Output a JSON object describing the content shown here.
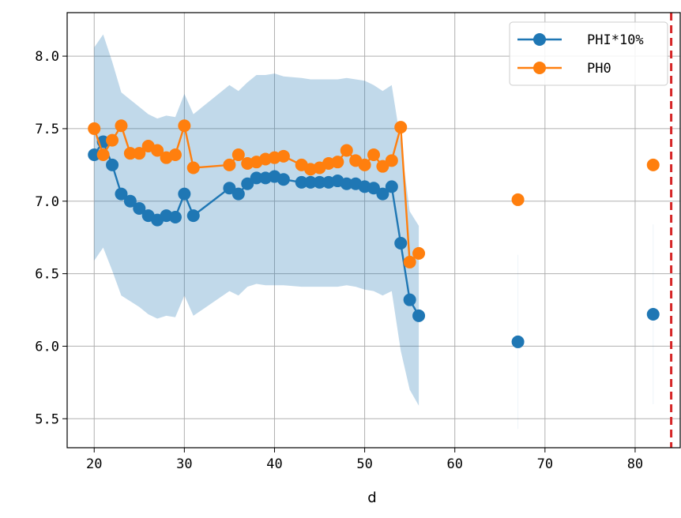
{
  "chart_data": {
    "type": "line",
    "title": "",
    "xlabel": "d",
    "ylabel": "",
    "xlim": [
      17,
      85
    ],
    "ylim": [
      5.3,
      8.3
    ],
    "xticks": [
      20,
      30,
      40,
      50,
      60,
      70,
      80
    ],
    "yticks": [
      5.5,
      6.0,
      6.5,
      7.0,
      7.5,
      8.0
    ],
    "ytick_labels": [
      "5.5",
      "6.0",
      "6.5",
      "7.0",
      "7.5",
      "8.0"
    ],
    "grid": true,
    "legend_position": "top-right",
    "vline": {
      "x": 84,
      "color": "#d62728",
      "style": "dashed"
    },
    "band": {
      "color": "#1f77b4",
      "opacity": 0.28,
      "x": [
        20,
        21,
        22,
        23,
        24,
        25,
        26,
        27,
        28,
        29,
        30,
        31,
        35,
        36,
        37,
        38,
        39,
        40,
        41,
        43,
        44,
        45,
        46,
        47,
        48,
        49,
        50,
        51,
        52,
        53,
        54,
        55,
        56
      ],
      "upper": [
        8.06,
        8.15,
        7.96,
        7.75,
        7.7,
        7.65,
        7.6,
        7.57,
        7.59,
        7.58,
        7.74,
        7.6,
        7.8,
        7.76,
        7.82,
        7.87,
        7.87,
        7.88,
        7.86,
        7.85,
        7.84,
        7.84,
        7.84,
        7.84,
        7.85,
        7.84,
        7.83,
        7.8,
        7.76,
        7.8,
        7.41,
        6.93,
        6.83
      ],
      "lower": [
        6.59,
        6.68,
        6.52,
        6.35,
        6.31,
        6.27,
        6.22,
        6.19,
        6.21,
        6.2,
        6.35,
        6.21,
        6.38,
        6.35,
        6.41,
        6.43,
        6.42,
        6.42,
        6.42,
        6.41,
        6.41,
        6.41,
        6.41,
        6.41,
        6.42,
        6.41,
        6.39,
        6.38,
        6.35,
        6.38,
        5.97,
        5.7,
        5.59
      ]
    },
    "faint_band_segments": [
      {
        "x": 67,
        "upper": 6.63,
        "lower": 5.43
      },
      {
        "x": 82,
        "upper": 6.84,
        "lower": 5.6
      }
    ],
    "series": [
      {
        "name": "PHI*10%",
        "color": "#1f77b4",
        "x": [
          20,
          21,
          22,
          23,
          24,
          25,
          26,
          27,
          28,
          29,
          30,
          31,
          35,
          36,
          37,
          38,
          39,
          40,
          41,
          43,
          44,
          45,
          46,
          47,
          48,
          49,
          50,
          51,
          52,
          53,
          54,
          55,
          56,
          67,
          82
        ],
        "values": [
          7.32,
          7.41,
          7.25,
          7.05,
          7.0,
          6.95,
          6.9,
          6.87,
          6.9,
          6.89,
          7.05,
          6.9,
          7.09,
          7.05,
          7.12,
          7.16,
          7.16,
          7.17,
          7.15,
          7.13,
          7.13,
          7.13,
          7.13,
          7.14,
          7.12,
          7.12,
          7.1,
          7.09,
          7.05,
          7.1,
          6.71,
          6.32,
          6.21,
          6.03,
          6.22
        ],
        "connected_until_index": 32
      },
      {
        "name": "PH0",
        "color": "#ff7f0e",
        "x": [
          20,
          21,
          22,
          23,
          24,
          25,
          26,
          27,
          28,
          29,
          30,
          31,
          35,
          36,
          37,
          38,
          39,
          40,
          41,
          43,
          44,
          45,
          46,
          47,
          48,
          49,
          50,
          51,
          52,
          53,
          54,
          55,
          56,
          67,
          82
        ],
        "values": [
          7.5,
          7.32,
          7.42,
          7.52,
          7.33,
          7.33,
          7.38,
          7.35,
          7.3,
          7.32,
          7.52,
          7.23,
          7.25,
          7.32,
          7.26,
          7.27,
          7.29,
          7.3,
          7.31,
          7.25,
          7.22,
          7.23,
          7.26,
          7.27,
          7.35,
          7.28,
          7.25,
          7.32,
          7.24,
          7.28,
          7.51,
          6.58,
          6.64,
          7.01,
          7.25
        ],
        "connected_until_index": 32
      }
    ]
  }
}
